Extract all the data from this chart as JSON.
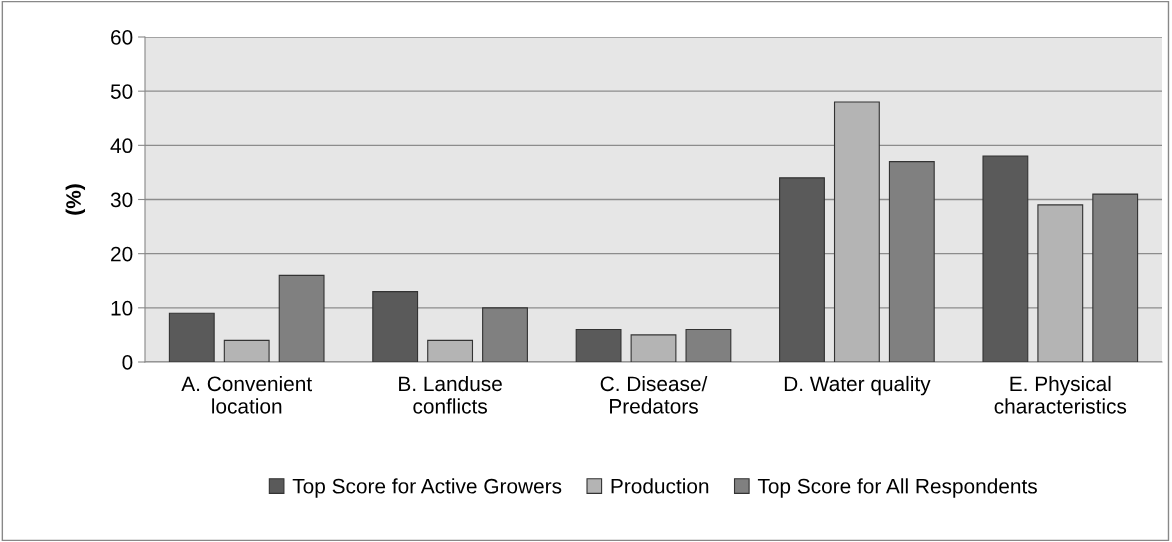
{
  "chart_data": {
    "type": "bar",
    "ylabel": "(%)",
    "categories": [
      "A. Convenient\nlocation",
      "B. Landuse\nconflicts",
      "C. Disease/\nPredators",
      "D. Water quality",
      "E. Physical\ncharacteristics"
    ],
    "series": [
      {
        "name": "Top Score for Active Growers",
        "color": "#5a5a5a",
        "values": [
          9,
          13,
          6,
          34,
          38
        ]
      },
      {
        "name": "Production",
        "color": "#b4b4b4",
        "values": [
          4,
          4,
          5,
          48,
          29
        ]
      },
      {
        "name": "Top Score for All Respondents",
        "color": "#808080",
        "values": [
          16,
          10,
          6,
          37,
          31
        ]
      }
    ],
    "ylim": [
      0,
      60
    ],
    "yticks": [
      0,
      10,
      20,
      30,
      40,
      50,
      60
    ],
    "grid": "y",
    "legend": "bottom"
  }
}
